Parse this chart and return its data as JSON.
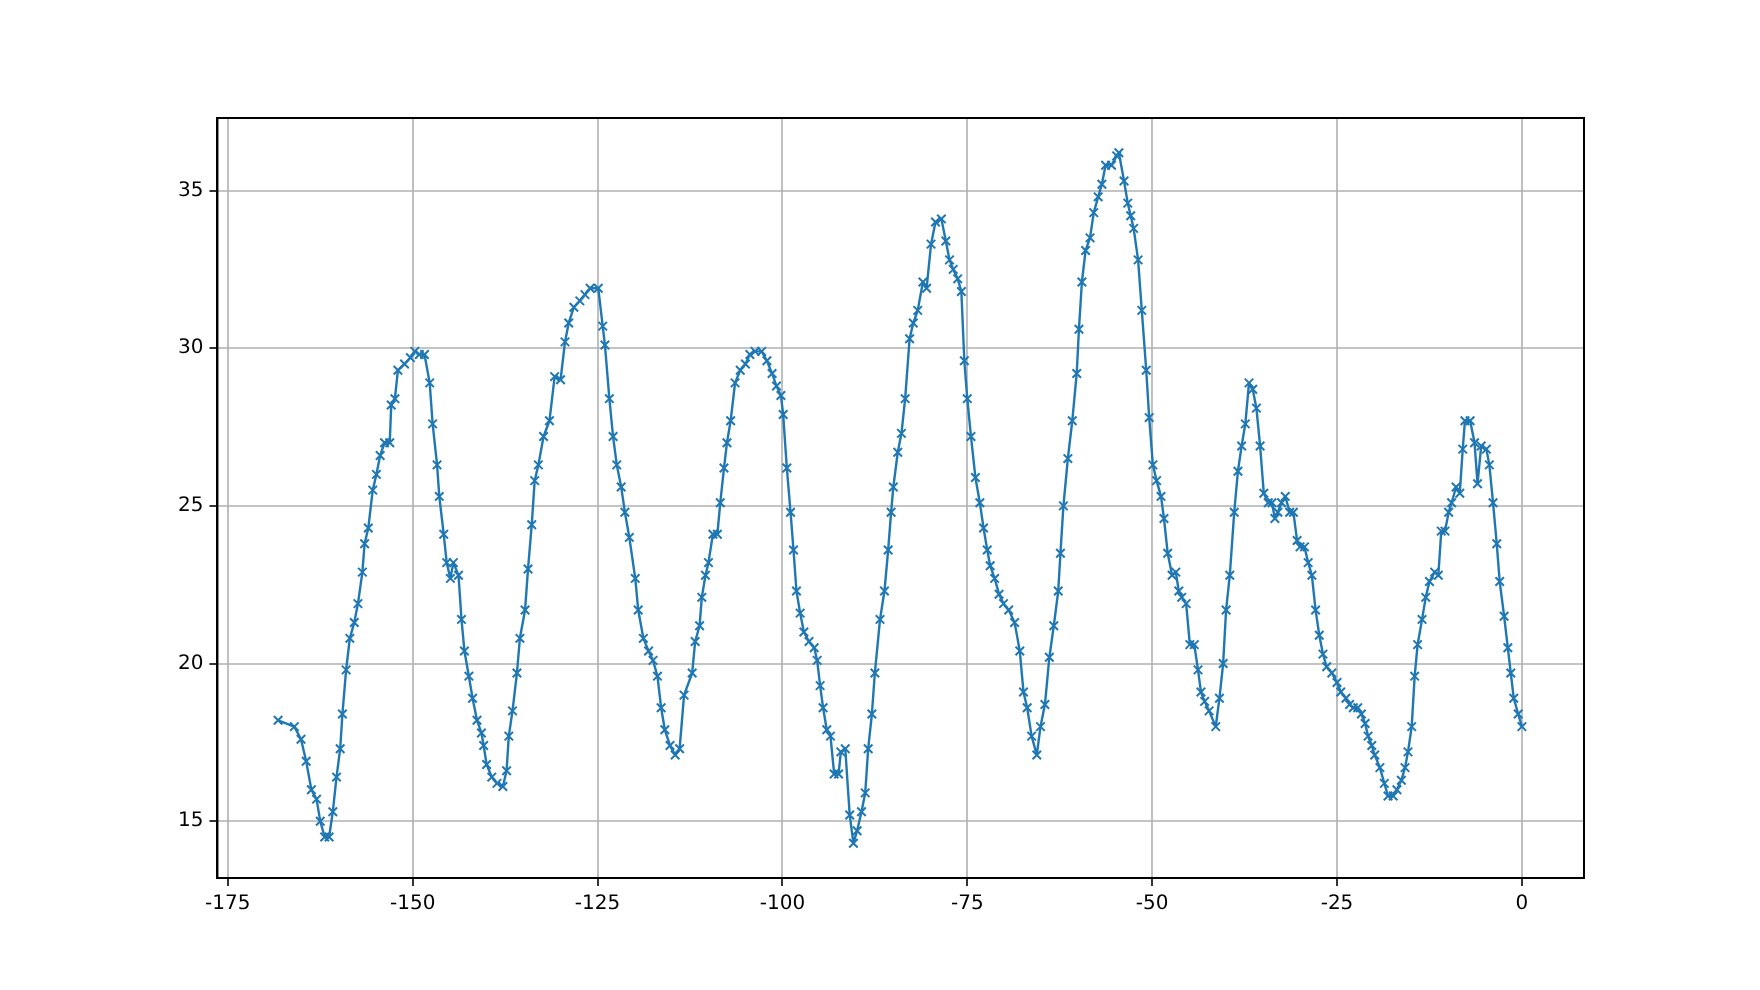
{
  "chart_data": {
    "type": "line",
    "color": "#1f77b4",
    "marker": "cross",
    "line_style": "solid",
    "grid": true,
    "legend": false,
    "xlim": [
      -176.4,
      8.4
    ],
    "ylim": [
      13.2,
      37.3
    ],
    "xticks": [
      -175,
      -150,
      -125,
      -100,
      -75,
      -50,
      -25,
      0
    ],
    "yticks": [
      15,
      20,
      25,
      30,
      35
    ],
    "x": [
      -168.2,
      -166.0,
      -165.1,
      -164.4,
      -163.7,
      -163.0,
      -162.5,
      -161.9,
      -161.3,
      -160.8,
      -160.3,
      -159.8,
      -159.5,
      -159.0,
      -158.5,
      -157.9,
      -157.4,
      -156.8,
      -156.5,
      -156.0,
      -155.4,
      -154.9,
      -154.4,
      -153.8,
      -153.1,
      -152.9,
      -152.4,
      -152.0,
      -151.1,
      -150.3,
      -149.7,
      -149.1,
      -148.4,
      -147.7,
      -147.3,
      -146.7,
      -146.4,
      -145.8,
      -145.4,
      -144.9,
      -144.5,
      -143.8,
      -143.4,
      -143.0,
      -142.4,
      -141.9,
      -141.3,
      -140.7,
      -140.4,
      -140.0,
      -139.3,
      -138.6,
      -137.8,
      -137.3,
      -137.0,
      -136.5,
      -135.9,
      -135.5,
      -134.8,
      -134.4,
      -133.9,
      -133.5,
      -133.0,
      -132.3,
      -131.5,
      -130.8,
      -130.0,
      -129.4,
      -128.9,
      -128.2,
      -127.4,
      -126.7,
      -126.0,
      -124.9,
      -124.3,
      -124.0,
      -123.4,
      -122.9,
      -122.4,
      -121.8,
      -121.3,
      -120.7,
      -119.9,
      -119.5,
      -118.8,
      -118.1,
      -117.5,
      -116.9,
      -116.4,
      -115.9,
      -115.2,
      -114.5,
      -113.9,
      -113.3,
      -112.2,
      -111.8,
      -111.2,
      -110.9,
      -110.4,
      -110.0,
      -109.4,
      -108.8,
      -108.4,
      -107.9,
      -107.5,
      -107.0,
      -106.4,
      -105.7,
      -105.0,
      -104.4,
      -103.7,
      -102.8,
      -102.1,
      -101.4,
      -100.8,
      -100.2,
      -99.9,
      -99.4,
      -98.9,
      -98.5,
      -98.1,
      -97.6,
      -97.1,
      -96.4,
      -95.7,
      -95.3,
      -94.9,
      -94.5,
      -94.0,
      -93.5,
      -93.0,
      -92.4,
      -92.1,
      -91.5,
      -90.9,
      -90.4,
      -89.9,
      -89.3,
      -88.8,
      -88.4,
      -87.9,
      -87.5,
      -86.8,
      -86.2,
      -85.7,
      -85.3,
      -85.0,
      -84.4,
      -83.9,
      -83.4,
      -82.8,
      -82.3,
      -81.7,
      -81.0,
      -80.5,
      -79.9,
      -79.3,
      -78.5,
      -77.9,
      -77.4,
      -76.9,
      -76.3,
      -75.8,
      -75.4,
      -75.0,
      -74.5,
      -73.9,
      -73.3,
      -72.8,
      -72.3,
      -71.9,
      -71.3,
      -70.7,
      -70.1,
      -69.4,
      -68.6,
      -67.9,
      -67.4,
      -66.9,
      -66.3,
      -65.6,
      -65.1,
      -64.5,
      -63.9,
      -63.3,
      -62.7,
      -62.4,
      -62.0,
      -61.4,
      -60.8,
      -60.2,
      -59.9,
      -59.5,
      -59.0,
      -58.4,
      -57.9,
      -57.3,
      -56.8,
      -56.3,
      -55.5,
      -54.8,
      -54.5,
      -53.8,
      -53.3,
      -52.9,
      -52.5,
      -51.9,
      -51.4,
      -50.8,
      -50.4,
      -49.9,
      -49.4,
      -48.8,
      -48.4,
      -47.9,
      -47.3,
      -46.8,
      -46.4,
      -46.0,
      -45.4,
      -44.9,
      -44.3,
      -43.8,
      -43.4,
      -42.9,
      -42.3,
      -41.4,
      -40.9,
      -40.4,
      -40.0,
      -39.5,
      -38.9,
      -38.4,
      -37.9,
      -37.4,
      -36.9,
      -36.4,
      -35.9,
      -35.4,
      -34.9,
      -34.3,
      -33.8,
      -33.4,
      -33.0,
      -32.5,
      -32.0,
      -31.4,
      -30.9,
      -30.4,
      -30.0,
      -29.4,
      -28.9,
      -28.4,
      -27.9,
      -27.4,
      -26.9,
      -26.4,
      -25.7,
      -25.0,
      -24.5,
      -23.8,
      -23.3,
      -22.8,
      -22.2,
      -21.7,
      -21.2,
      -20.8,
      -20.3,
      -19.9,
      -19.2,
      -18.6,
      -18.1,
      -17.4,
      -16.9,
      -16.3,
      -15.8,
      -15.4,
      -14.9,
      -14.5,
      -14.1,
      -13.5,
      -13.0,
      -12.5,
      -11.8,
      -11.3,
      -10.9,
      -10.4,
      -9.9,
      -9.5,
      -8.9,
      -8.4,
      -8.0,
      -7.7,
      -7.0,
      -6.4,
      -6.0,
      -5.5,
      -4.8,
      -4.4,
      -3.9,
      -3.4,
      -3.0,
      -2.4,
      -1.9,
      -1.5,
      -1.1,
      -0.5,
      0
    ],
    "values": [
      18.2,
      18.0,
      17.6,
      16.9,
      16.0,
      15.7,
      15.0,
      14.5,
      14.5,
      15.3,
      16.4,
      17.3,
      18.4,
      19.8,
      20.8,
      21.3,
      21.9,
      22.9,
      23.8,
      24.3,
      25.5,
      26.0,
      26.6,
      27.0,
      27.0,
      28.2,
      28.4,
      29.3,
      29.5,
      29.7,
      29.9,
      29.8,
      29.8,
      28.9,
      27.6,
      26.3,
      25.3,
      24.1,
      23.2,
      22.7,
      23.2,
      22.8,
      21.4,
      20.4,
      19.6,
      18.9,
      18.2,
      17.8,
      17.4,
      16.8,
      16.4,
      16.2,
      16.1,
      16.6,
      17.7,
      18.5,
      19.7,
      20.8,
      21.7,
      23.0,
      24.4,
      25.8,
      26.3,
      27.2,
      27.7,
      29.1,
      29.0,
      30.2,
      30.8,
      31.3,
      31.5,
      31.7,
      31.9,
      31.9,
      30.7,
      30.1,
      28.4,
      27.2,
      26.3,
      25.6,
      24.8,
      24.0,
      22.7,
      21.7,
      20.8,
      20.4,
      20.1,
      19.6,
      18.6,
      17.9,
      17.4,
      17.1,
      17.3,
      19.0,
      19.7,
      20.7,
      21.2,
      22.1,
      22.8,
      23.2,
      24.1,
      24.1,
      25.1,
      26.2,
      27.0,
      27.7,
      28.9,
      29.3,
      29.5,
      29.8,
      29.9,
      29.9,
      29.6,
      29.2,
      28.8,
      28.5,
      27.9,
      26.2,
      24.8,
      23.6,
      22.3,
      21.6,
      21.0,
      20.7,
      20.5,
      20.1,
      19.3,
      18.6,
      17.9,
      17.7,
      16.5,
      16.5,
      17.2,
      17.3,
      15.2,
      14.3,
      14.7,
      15.3,
      15.9,
      17.3,
      18.4,
      19.7,
      21.4,
      22.3,
      23.6,
      24.8,
      25.6,
      26.7,
      27.3,
      28.4,
      30.3,
      30.8,
      31.2,
      32.1,
      31.9,
      33.3,
      34.0,
      34.1,
      33.4,
      32.8,
      32.5,
      32.2,
      31.8,
      29.6,
      28.4,
      27.2,
      25.9,
      25.1,
      24.3,
      23.6,
      23.1,
      22.7,
      22.2,
      21.9,
      21.7,
      21.3,
      20.4,
      19.1,
      18.6,
      17.7,
      17.1,
      18.0,
      18.7,
      20.2,
      21.2,
      22.3,
      23.5,
      25.0,
      26.5,
      27.7,
      29.2,
      30.6,
      32.1,
      33.1,
      33.5,
      34.3,
      34.8,
      35.2,
      35.8,
      35.8,
      36.1,
      36.2,
      35.3,
      34.6,
      34.2,
      33.8,
      32.8,
      31.2,
      29.3,
      27.8,
      26.3,
      25.8,
      25.3,
      24.6,
      23.5,
      22.8,
      22.9,
      22.3,
      22.1,
      21.9,
      20.6,
      20.6,
      19.8,
      19.1,
      18.8,
      18.5,
      18.0,
      18.9,
      20.0,
      21.7,
      22.8,
      24.8,
      26.1,
      26.9,
      27.6,
      28.9,
      28.7,
      28.1,
      26.9,
      25.4,
      25.1,
      25.1,
      24.6,
      24.8,
      25.1,
      25.3,
      24.8,
      24.8,
      23.9,
      23.7,
      23.7,
      23.2,
      22.8,
      21.7,
      20.9,
      20.3,
      19.9,
      19.7,
      19.4,
      19.1,
      18.9,
      18.7,
      18.6,
      18.6,
      18.4,
      18.1,
      17.7,
      17.4,
      17.1,
      16.7,
      16.2,
      15.8,
      15.8,
      16.0,
      16.3,
      16.7,
      17.2,
      18.0,
      19.6,
      20.6,
      21.4,
      22.1,
      22.6,
      22.9,
      22.8,
      24.2,
      24.2,
      24.8,
      25.1,
      25.6,
      25.4,
      26.8,
      27.7,
      27.7,
      27.0,
      25.7,
      26.9,
      26.8,
      26.3,
      25.1,
      23.8,
      22.6,
      21.5,
      20.5,
      19.7,
      18.9,
      18.4,
      18.0
    ]
  }
}
